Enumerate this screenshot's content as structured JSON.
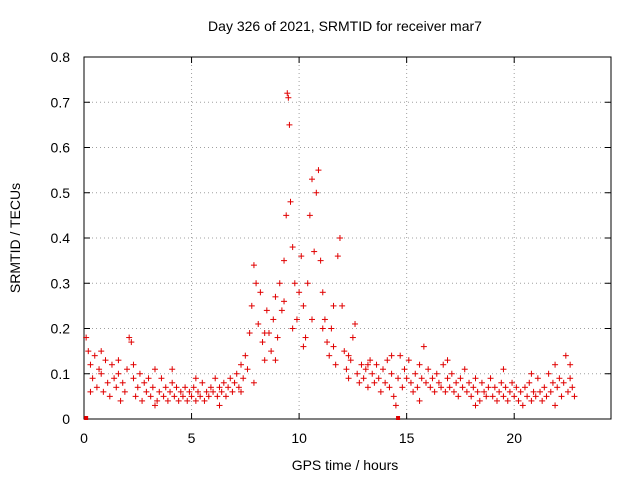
{
  "chart_data": {
    "type": "scatter",
    "title": "Day 326 of 2021, SRMTID for receiver mar7",
    "xlabel": "GPS time / hours",
    "ylabel": "SRMTID / TECUs",
    "xlim": [
      0,
      24.5
    ],
    "ylim": [
      0,
      0.8
    ],
    "x_ticks": [
      0,
      5,
      10,
      15,
      20
    ],
    "y_ticks": [
      0,
      0.1,
      0.2,
      0.3,
      0.4,
      0.5,
      0.6,
      0.7,
      0.8
    ],
    "x_tick_labels": [
      "0",
      "5",
      "10",
      "15",
      "20"
    ],
    "y_tick_labels": [
      "0",
      "0.1",
      "0.2",
      "0.3",
      "0.4",
      "0.5",
      "0.6",
      "0.7",
      "0.8"
    ],
    "grid": true,
    "marker": "+",
    "color": "#e00000",
    "zero_markers": [
      0.1,
      14.6
    ],
    "series": [
      {
        "name": "SRMTID",
        "points": [
          [
            0.1,
            0.18
          ],
          [
            0.2,
            0.15
          ],
          [
            0.3,
            0.12
          ],
          [
            0.4,
            0.09
          ],
          [
            0.5,
            0.14
          ],
          [
            0.6,
            0.07
          ],
          [
            0.7,
            0.11
          ],
          [
            0.8,
            0.1
          ],
          [
            0.9,
            0.06
          ],
          [
            1.0,
            0.13
          ],
          [
            1.1,
            0.08
          ],
          [
            1.2,
            0.05
          ],
          [
            1.3,
            0.12
          ],
          [
            1.4,
            0.09
          ],
          [
            1.5,
            0.07
          ],
          [
            1.6,
            0.1
          ],
          [
            1.7,
            0.04
          ],
          [
            1.8,
            0.08
          ],
          [
            1.9,
            0.06
          ],
          [
            2.0,
            0.11
          ],
          [
            2.1,
            0.18
          ],
          [
            2.2,
            0.17
          ],
          [
            2.3,
            0.09
          ],
          [
            2.4,
            0.05
          ],
          [
            2.5,
            0.07
          ],
          [
            2.6,
            0.1
          ],
          [
            2.7,
            0.04
          ],
          [
            2.8,
            0.08
          ],
          [
            2.9,
            0.06
          ],
          [
            3.0,
            0.09
          ],
          [
            3.1,
            0.05
          ],
          [
            3.2,
            0.07
          ],
          [
            3.3,
            0.11
          ],
          [
            3.4,
            0.04
          ],
          [
            3.5,
            0.06
          ],
          [
            3.6,
            0.09
          ],
          [
            3.7,
            0.05
          ],
          [
            3.8,
            0.07
          ],
          [
            3.9,
            0.04
          ],
          [
            4.0,
            0.06
          ],
          [
            4.1,
            0.08
          ],
          [
            4.2,
            0.05
          ],
          [
            4.3,
            0.07
          ],
          [
            4.4,
            0.04
          ],
          [
            4.5,
            0.06
          ],
          [
            4.6,
            0.05
          ],
          [
            4.7,
            0.07
          ],
          [
            4.8,
            0.04
          ],
          [
            4.9,
            0.06
          ],
          [
            5.0,
            0.05
          ],
          [
            5.1,
            0.07
          ],
          [
            5.2,
            0.04
          ],
          [
            5.3,
            0.06
          ],
          [
            5.4,
            0.05
          ],
          [
            5.5,
            0.08
          ],
          [
            5.6,
            0.04
          ],
          [
            5.7,
            0.06
          ],
          [
            5.8,
            0.05
          ],
          [
            5.9,
            0.07
          ],
          [
            6.0,
            0.06
          ],
          [
            6.1,
            0.09
          ],
          [
            6.2,
            0.05
          ],
          [
            6.3,
            0.07
          ],
          [
            6.4,
            0.06
          ],
          [
            6.5,
            0.08
          ],
          [
            6.6,
            0.05
          ],
          [
            6.7,
            0.07
          ],
          [
            6.8,
            0.09
          ],
          [
            6.9,
            0.06
          ],
          [
            7.0,
            0.08
          ],
          [
            7.1,
            0.1
          ],
          [
            7.2,
            0.07
          ],
          [
            7.3,
            0.12
          ],
          [
            7.4,
            0.09
          ],
          [
            7.5,
            0.14
          ],
          [
            7.6,
            0.11
          ],
          [
            7.7,
            0.19
          ],
          [
            7.8,
            0.25
          ],
          [
            7.9,
            0.34
          ],
          [
            8.0,
            0.3
          ],
          [
            8.1,
            0.21
          ],
          [
            8.2,
            0.28
          ],
          [
            8.3,
            0.17
          ],
          [
            8.4,
            0.13
          ],
          [
            8.5,
            0.24
          ],
          [
            8.6,
            0.19
          ],
          [
            8.7,
            0.15
          ],
          [
            8.8,
            0.22
          ],
          [
            8.9,
            0.27
          ],
          [
            9.0,
            0.18
          ],
          [
            9.1,
            0.3
          ],
          [
            9.2,
            0.24
          ],
          [
            9.3,
            0.35
          ],
          [
            9.4,
            0.45
          ],
          [
            9.45,
            0.72
          ],
          [
            9.5,
            0.71
          ],
          [
            9.55,
            0.65
          ],
          [
            9.6,
            0.48
          ],
          [
            9.7,
            0.38
          ],
          [
            9.8,
            0.3
          ],
          [
            9.9,
            0.22
          ],
          [
            10.0,
            0.28
          ],
          [
            10.1,
            0.36
          ],
          [
            10.2,
            0.25
          ],
          [
            10.3,
            0.18
          ],
          [
            10.4,
            0.3
          ],
          [
            10.5,
            0.45
          ],
          [
            10.6,
            0.53
          ],
          [
            10.7,
            0.37
          ],
          [
            10.8,
            0.5
          ],
          [
            10.9,
            0.55
          ],
          [
            11.0,
            0.35
          ],
          [
            11.1,
            0.28
          ],
          [
            11.2,
            0.22
          ],
          [
            11.3,
            0.17
          ],
          [
            11.4,
            0.14
          ],
          [
            11.5,
            0.2
          ],
          [
            11.6,
            0.16
          ],
          [
            11.7,
            0.12
          ],
          [
            11.8,
            0.36
          ],
          [
            11.9,
            0.4
          ],
          [
            12.0,
            0.25
          ],
          [
            12.1,
            0.15
          ],
          [
            12.2,
            0.11
          ],
          [
            12.3,
            0.09
          ],
          [
            12.4,
            0.13
          ],
          [
            12.5,
            0.18
          ],
          [
            12.6,
            0.21
          ],
          [
            12.7,
            0.1
          ],
          [
            12.8,
            0.08
          ],
          [
            12.9,
            0.12
          ],
          [
            13.0,
            0.09
          ],
          [
            13.1,
            0.11
          ],
          [
            13.2,
            0.07
          ],
          [
            13.3,
            0.13
          ],
          [
            13.4,
            0.1
          ],
          [
            13.5,
            0.08
          ],
          [
            13.6,
            0.12
          ],
          [
            13.7,
            0.09
          ],
          [
            13.8,
            0.06
          ],
          [
            13.9,
            0.11
          ],
          [
            14.0,
            0.08
          ],
          [
            14.1,
            0.13
          ],
          [
            14.2,
            0.07
          ],
          [
            14.3,
            0.1
          ],
          [
            14.4,
            0.05
          ],
          [
            14.5,
            0.03
          ],
          [
            14.6,
            0.09
          ],
          [
            14.7,
            0.14
          ],
          [
            14.8,
            0.07
          ],
          [
            14.9,
            0.11
          ],
          [
            15.0,
            0.09
          ],
          [
            15.1,
            0.13
          ],
          [
            15.2,
            0.08
          ],
          [
            15.3,
            0.06
          ],
          [
            15.4,
            0.1
          ],
          [
            15.5,
            0.07
          ],
          [
            15.6,
            0.12
          ],
          [
            15.7,
            0.09
          ],
          [
            15.8,
            0.16
          ],
          [
            15.9,
            0.08
          ],
          [
            16.0,
            0.11
          ],
          [
            16.1,
            0.07
          ],
          [
            16.2,
            0.09
          ],
          [
            16.3,
            0.06
          ],
          [
            16.4,
            0.1
          ],
          [
            16.5,
            0.08
          ],
          [
            16.6,
            0.07
          ],
          [
            16.7,
            0.12
          ],
          [
            16.8,
            0.06
          ],
          [
            16.9,
            0.09
          ],
          [
            17.0,
            0.07
          ],
          [
            17.1,
            0.1
          ],
          [
            17.2,
            0.06
          ],
          [
            17.3,
            0.08
          ],
          [
            17.4,
            0.05
          ],
          [
            17.5,
            0.09
          ],
          [
            17.6,
            0.07
          ],
          [
            17.7,
            0.11
          ],
          [
            17.8,
            0.06
          ],
          [
            17.9,
            0.08
          ],
          [
            18.0,
            0.05
          ],
          [
            18.1,
            0.07
          ],
          [
            18.2,
            0.09
          ],
          [
            18.3,
            0.06
          ],
          [
            18.4,
            0.04
          ],
          [
            18.5,
            0.08
          ],
          [
            18.6,
            0.06
          ],
          [
            18.7,
            0.05
          ],
          [
            18.8,
            0.07
          ],
          [
            18.9,
            0.09
          ],
          [
            19.0,
            0.05
          ],
          [
            19.1,
            0.07
          ],
          [
            19.2,
            0.04
          ],
          [
            19.3,
            0.06
          ],
          [
            19.4,
            0.08
          ],
          [
            19.5,
            0.05
          ],
          [
            19.6,
            0.07
          ],
          [
            19.7,
            0.04
          ],
          [
            19.8,
            0.06
          ],
          [
            19.9,
            0.08
          ],
          [
            20.0,
            0.05
          ],
          [
            20.1,
            0.07
          ],
          [
            20.2,
            0.04
          ],
          [
            20.3,
            0.06
          ],
          [
            20.4,
            0.03
          ],
          [
            20.5,
            0.07
          ],
          [
            20.6,
            0.05
          ],
          [
            20.7,
            0.08
          ],
          [
            20.8,
            0.04
          ],
          [
            20.9,
            0.06
          ],
          [
            21.0,
            0.05
          ],
          [
            21.1,
            0.09
          ],
          [
            21.2,
            0.06
          ],
          [
            21.3,
            0.04
          ],
          [
            21.4,
            0.07
          ],
          [
            21.5,
            0.05
          ],
          [
            21.6,
            0.1
          ],
          [
            21.7,
            0.06
          ],
          [
            21.8,
            0.08
          ],
          [
            21.9,
            0.12
          ],
          [
            22.0,
            0.07
          ],
          [
            22.1,
            0.09
          ],
          [
            22.2,
            0.05
          ],
          [
            22.3,
            0.08
          ],
          [
            22.4,
            0.14
          ],
          [
            22.5,
            0.06
          ],
          [
            22.6,
            0.09
          ],
          [
            22.7,
            0.07
          ],
          [
            22.8,
            0.05
          ],
          [
            0.3,
            0.06
          ],
          [
            0.8,
            0.15
          ],
          [
            1.6,
            0.13
          ],
          [
            2.3,
            0.12
          ],
          [
            3.3,
            0.03
          ],
          [
            4.1,
            0.11
          ],
          [
            5.2,
            0.09
          ],
          [
            6.3,
            0.03
          ],
          [
            7.3,
            0.06
          ],
          [
            7.9,
            0.08
          ],
          [
            8.4,
            0.19
          ],
          [
            8.9,
            0.13
          ],
          [
            9.3,
            0.26
          ],
          [
            9.7,
            0.2
          ],
          [
            10.2,
            0.16
          ],
          [
            10.6,
            0.22
          ],
          [
            11.1,
            0.2
          ],
          [
            11.6,
            0.25
          ],
          [
            12.3,
            0.14
          ],
          [
            13.2,
            0.12
          ],
          [
            14.3,
            0.14
          ],
          [
            15.6,
            0.04
          ],
          [
            16.9,
            0.13
          ],
          [
            18.2,
            0.03
          ],
          [
            19.5,
            0.11
          ],
          [
            20.8,
            0.1
          ],
          [
            21.9,
            0.03
          ],
          [
            22.6,
            0.12
          ]
        ]
      }
    ]
  }
}
